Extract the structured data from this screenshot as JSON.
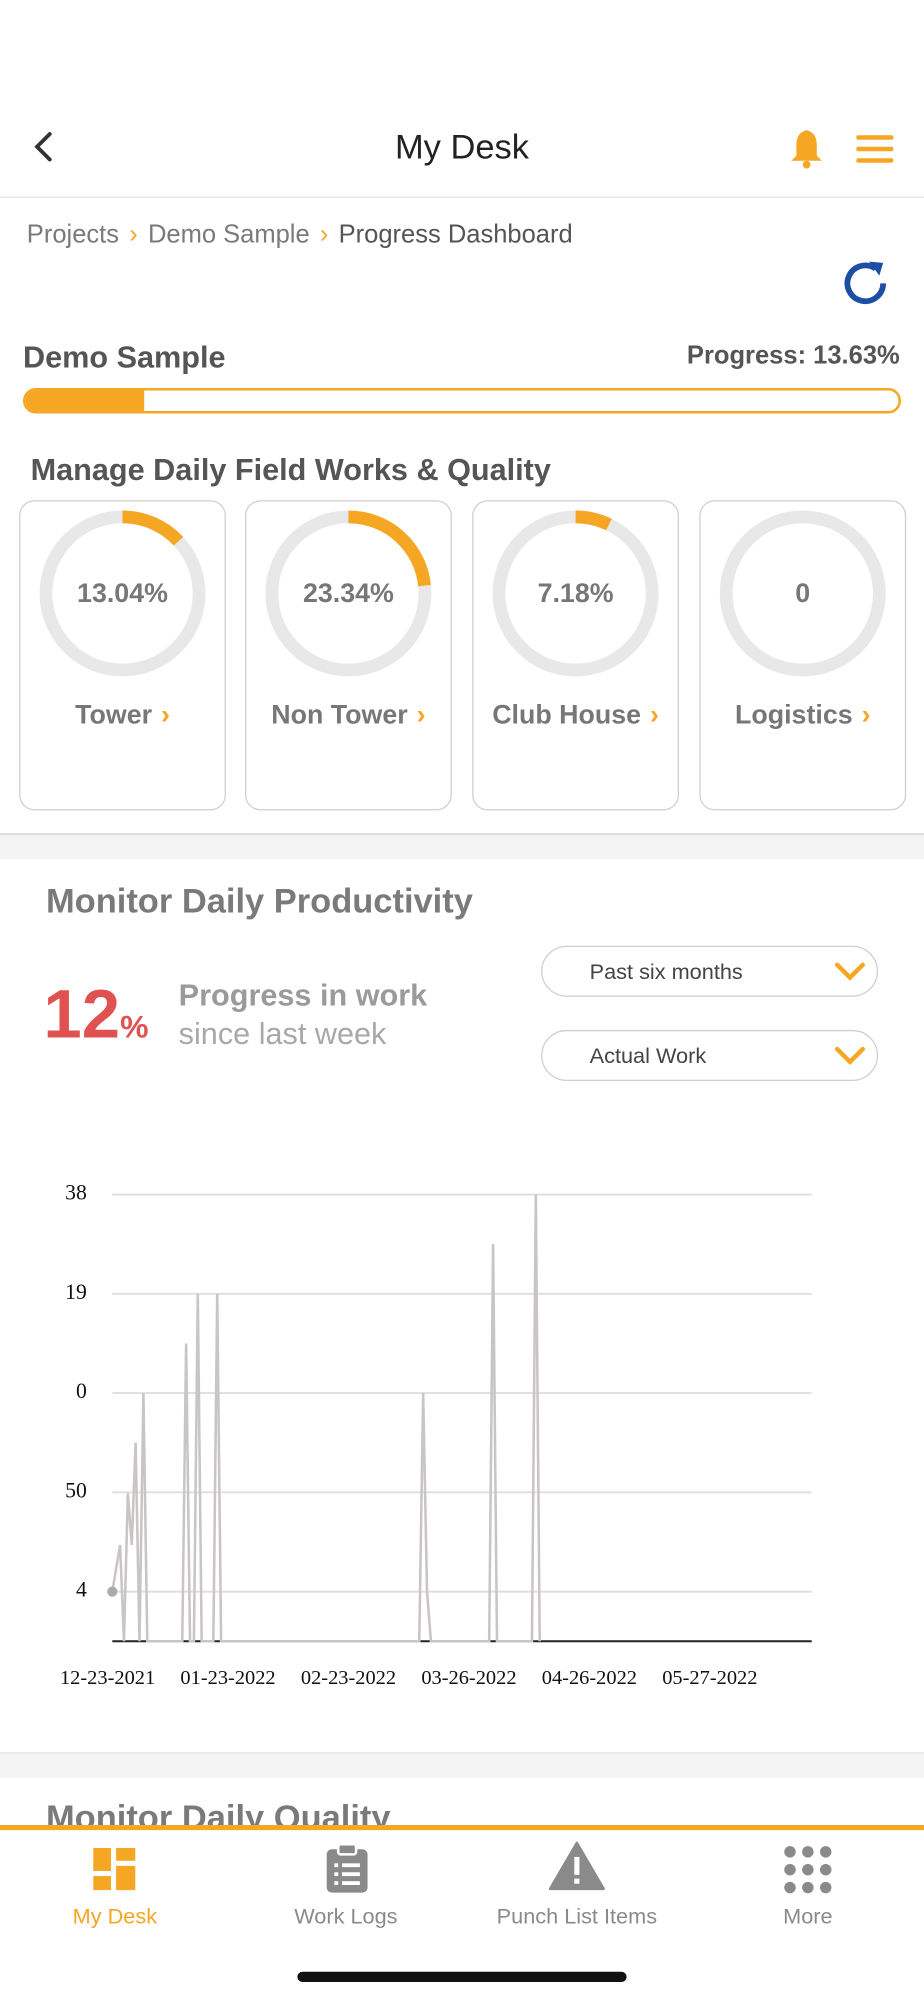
{
  "header": {
    "title": "My Desk"
  },
  "breadcrumb": [
    "Projects",
    "Demo Sample",
    "Progress Dashboard"
  ],
  "project": {
    "name": "Demo Sample",
    "progress": 13.63,
    "progress_label": "Progress: 13.63%"
  },
  "field_works": {
    "title": "Manage Daily Field Works & Quality",
    "cards": [
      {
        "label": "Tower",
        "value": 13.04,
        "value_label": "13.04%"
      },
      {
        "label": "Non Tower",
        "value": 23.34,
        "value_label": "23.34%"
      },
      {
        "label": "Club House",
        "value": 7.18,
        "value_label": "7.18%"
      },
      {
        "label": "Logistics",
        "value": 0
      }
    ]
  },
  "productivity": {
    "title": "Monitor Daily Productivity",
    "change": 12,
    "change_unit": "%",
    "caption": [
      "Progress in work",
      "since last week"
    ],
    "filters": [
      "Past six months",
      "Actual Work"
    ],
    "chart": {
      "type": "line",
      "color": "#c9c5c5",
      "grid": true,
      "x": [
        "12-23-2021",
        "12-25-2021",
        "12-26-2021",
        "12-27-2021",
        "12-28-2021",
        "12-29-2021",
        "12-30-2021",
        "12-31-2021",
        "01-01-2022",
        "01-10-2022",
        "01-11-2022",
        "01-12-2022",
        "01-13-2022",
        "01-14-2022",
        "01-15-2022",
        "01-18-2022",
        "01-19-2022",
        "01-20-2022",
        "03-12-2022",
        "03-13-2022",
        "03-14-2022",
        "03-15-2022",
        "03-30-2022",
        "03-31-2022",
        "04-01-2022",
        "04-10-2022",
        "04-11-2022",
        "04-12-2022"
      ],
      "values": [
        0.5,
        0.97,
        0,
        1.49,
        0.97,
        2.0,
        0,
        2.5,
        0,
        0,
        3.0,
        0,
        0,
        3.5,
        0,
        0,
        3.5,
        0,
        0,
        2.5,
        0.5,
        0,
        0,
        4.0,
        0,
        0,
        4.5,
        0
      ],
      "xlim": [
        "12-23-2021",
        "06-21-2022"
      ],
      "xticks": [
        "12-23-2021",
        "01-23-2022",
        "02-23-2022",
        "03-26-2022",
        "04-26-2022",
        "05-27-2022"
      ],
      "ylim": [
        0,
        4.5
      ],
      "yticks": [
        {
          "value": 4.5,
          "label": "38"
        },
        {
          "value": 3.5,
          "label": "19"
        },
        {
          "value": 2.5,
          "label": "0"
        },
        {
          "value": 1.5,
          "label": "50"
        },
        {
          "value": 0.5,
          "label": "4"
        }
      ]
    }
  },
  "quality": {
    "title": "Monitor Daily Quality"
  },
  "nav": [
    "My Desk",
    "Work Logs",
    "Punch List Items",
    "More"
  ]
}
